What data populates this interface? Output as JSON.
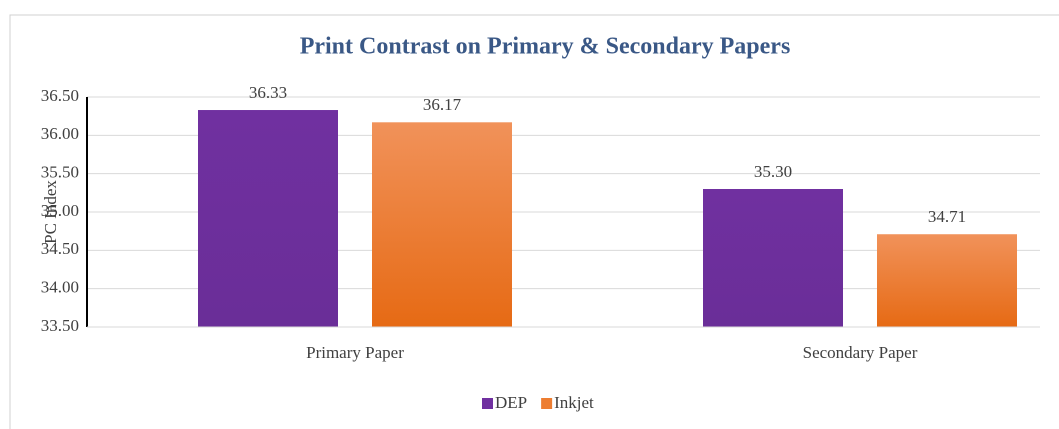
{
  "chart_data": {
    "type": "bar",
    "title": "Print Contrast on Primary & Secondary Papers",
    "y_label": "PC Index",
    "categories": [
      "Primary Paper",
      "Secondary Paper"
    ],
    "series": [
      {
        "name": "DEP",
        "color": "#7030a0",
        "values": [
          36.33,
          35.3
        ],
        "value_labels": [
          "36.33",
          "35.30"
        ]
      },
      {
        "name": "Inkjet",
        "color": "#ed7d31",
        "values": [
          36.17,
          34.71
        ],
        "value_labels": [
          "36.17",
          "34.71"
        ]
      }
    ],
    "ylim": [
      33.5,
      36.5
    ],
    "yticks": [
      {
        "value": 33.5,
        "label": "33.50"
      },
      {
        "value": 34,
        "label": "34.00"
      },
      {
        "value": 34.5,
        "label": "34.50"
      },
      {
        "value": 35,
        "label": "35.00"
      },
      {
        "value": 35.5,
        "label": "35.50"
      },
      {
        "value": 36,
        "label": "36.00"
      },
      {
        "value": 36.5,
        "label": "36.50"
      }
    ],
    "grid": true,
    "legend": "bottom"
  }
}
